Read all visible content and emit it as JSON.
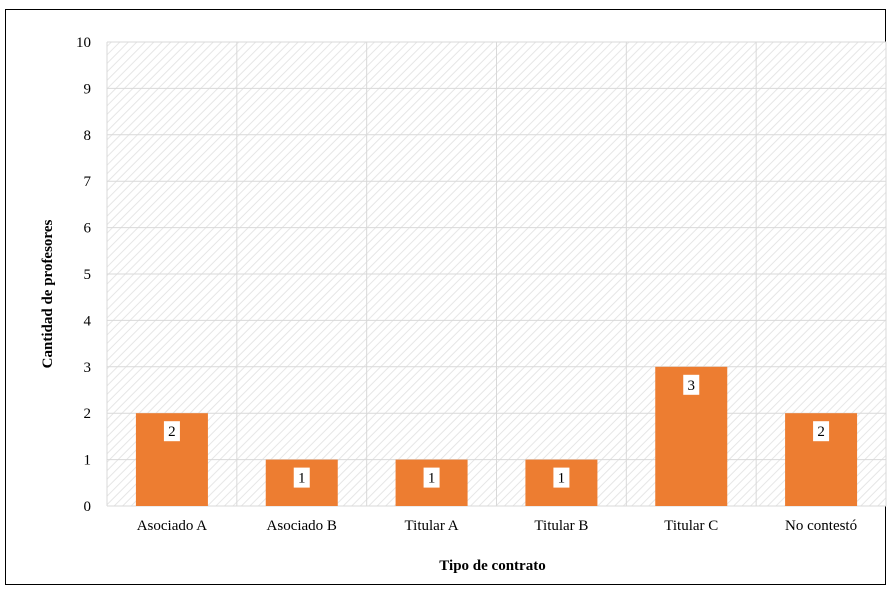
{
  "chart_data": {
    "type": "bar",
    "categories": [
      "Asociado A",
      "Asociado B",
      "Titular A",
      "Titular B",
      "Titular C",
      "No contestó"
    ],
    "values": [
      2,
      1,
      1,
      1,
      3,
      2
    ],
    "xlabel": "Tipo de contrato",
    "ylabel": "Cantidad de profesores",
    "ylim": [
      0,
      10
    ],
    "yticks": [
      0,
      1,
      2,
      3,
      4,
      5,
      6,
      7,
      8,
      9,
      10
    ],
    "grid": true,
    "legend": "none",
    "data_labels": true,
    "colors": {
      "bar": "#ED7D31",
      "grid": "#D9D9D9",
      "hatch": "#E6E6E6"
    }
  }
}
